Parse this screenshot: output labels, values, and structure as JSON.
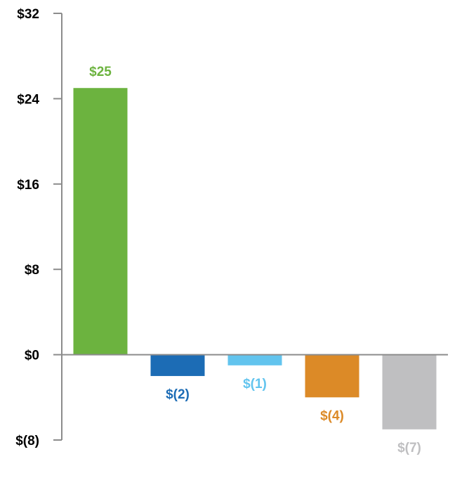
{
  "chart_data": {
    "type": "bar",
    "title": "",
    "xlabel": "",
    "ylabel": "",
    "ylim": [
      -8,
      32
    ],
    "y_ticks": [
      32,
      24,
      16,
      8,
      0,
      -8
    ],
    "y_tick_labels": [
      "$32",
      "$24",
      "$16",
      "$8",
      "$0",
      "$(8)"
    ],
    "grid": false,
    "legend": "none",
    "categories": [
      "",
      "",
      "",
      "",
      ""
    ],
    "values": [
      25,
      -2,
      -1,
      -4,
      -7
    ],
    "data_labels": [
      "$25",
      "$(2)",
      "$(1)",
      "$(4)",
      "$(7)"
    ],
    "colors": [
      "#6cb33f",
      "#1c6cb5",
      "#62c4ee",
      "#dc8a27",
      "#bfbfc1"
    ],
    "axis_color": "#8c8c8c"
  }
}
